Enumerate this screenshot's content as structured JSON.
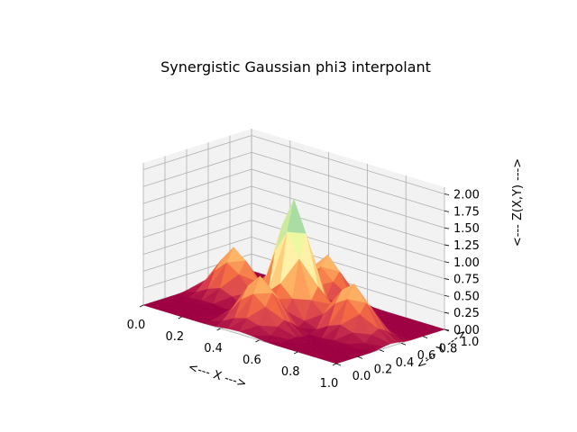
{
  "chart_data": {
    "type": "surface3d",
    "title": "Synergistic Gaussian phi3 interpolant",
    "xlabel": "<--- X --->",
    "ylabel": "<--- Y --->",
    "zlabel": "<--- Z(X,Y) --->",
    "xlim": [
      0,
      1
    ],
    "ylim": [
      0,
      1
    ],
    "zlim": [
      0,
      2.1
    ],
    "xticks": [
      "0.0",
      "0.2",
      "0.4",
      "0.6",
      "0.8",
      "1.0"
    ],
    "yticks": [
      "0.0",
      "0.2",
      "0.4",
      "0.6",
      "0.8",
      "1.0"
    ],
    "zticks": [
      "0.00",
      "0.25",
      "0.50",
      "0.75",
      "1.00",
      "1.25",
      "1.50",
      "1.75",
      "2.00"
    ],
    "colormap": "Spectral",
    "z_peak": 2.05,
    "surface_description": "Central peak z≈2.0 at (0.5,0.5) with four side lobes z≈0.9–1.0 near (0.2,0.5),(0.8,0.5),(0.5,0.2),(0.5,0.8); near zero at corners.",
    "grid": true,
    "background_color": "#ffffff",
    "pane_color": "#f2f2f2"
  }
}
